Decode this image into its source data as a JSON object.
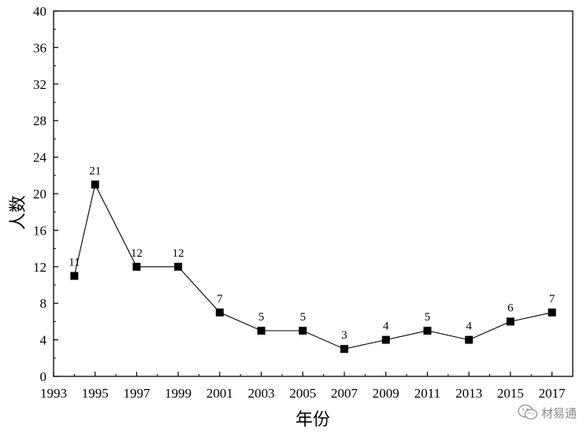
{
  "chart_data": {
    "type": "line",
    "x": [
      1994,
      1995,
      1997,
      1999,
      2001,
      2003,
      2005,
      2007,
      2009,
      2011,
      2013,
      2015,
      2017
    ],
    "series": [
      {
        "values": [
          11,
          21,
          12,
          12,
          7,
          5,
          5,
          3,
          4,
          5,
          4,
          6,
          7
        ],
        "labels": [
          "11",
          "21",
          "12",
          "12",
          "7",
          "5",
          "5",
          "3",
          "4",
          "5",
          "4",
          "6",
          "7"
        ]
      }
    ],
    "xticks": [
      "1993",
      "1995",
      "1997",
      "1999",
      "2001",
      "2003",
      "2005",
      "2007",
      "2009",
      "2011",
      "2013",
      "2015",
      "2017"
    ],
    "yticks": [
      "0",
      "4",
      "8",
      "12",
      "16",
      "20",
      "24",
      "28",
      "32",
      "36",
      "40"
    ],
    "xlim": [
      1993,
      2018
    ],
    "ylim": [
      0,
      40
    ],
    "xlabel": "年份",
    "ylabel": "人数",
    "title": "",
    "marker": "square",
    "grid": false,
    "line_color": "#000000"
  },
  "watermark": {
    "text": "材易通",
    "icon": "wechat-icon"
  }
}
